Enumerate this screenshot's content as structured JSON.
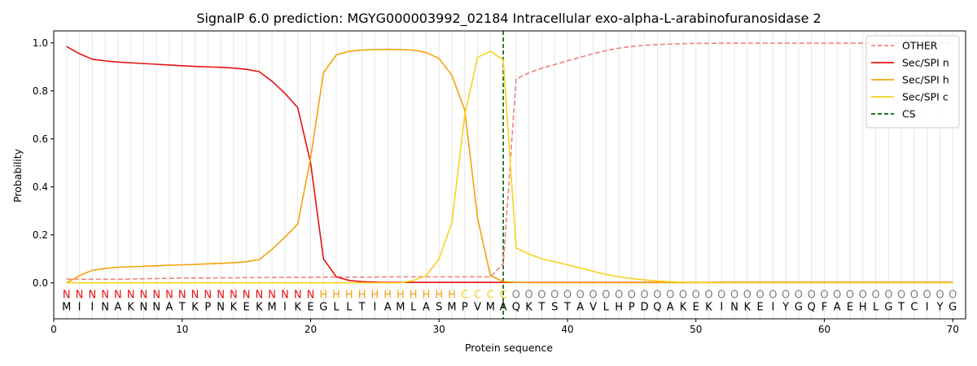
{
  "chart_data": {
    "type": "line",
    "title": "SignalP 6.0 prediction: MGYG000003992_02184 Intracellular exo-alpha-L-arabinofuranosidase 2",
    "xlabel": "Protein sequence",
    "ylabel": "Probability",
    "xlim": [
      0,
      71
    ],
    "ylim": [
      -0.15,
      1.05
    ],
    "xticks": [
      0,
      10,
      20,
      30,
      40,
      50,
      60,
      70
    ],
    "yticks": [
      0.0,
      0.2,
      0.4,
      0.6,
      0.8,
      1.0
    ],
    "ytick_labels": [
      "0.0",
      "0.2",
      "0.4",
      "0.6",
      "0.8",
      "1.0"
    ],
    "grid": "vertical lines at each residue",
    "legend_position": "top-right",
    "sequence": [
      "M",
      "I",
      "I",
      "N",
      "A",
      "K",
      "N",
      "N",
      "A",
      "T",
      "K",
      "P",
      "N",
      "K",
      "E",
      "K",
      "M",
      "I",
      "K",
      "E",
      "G",
      "L",
      "L",
      "T",
      "I",
      "A",
      "M",
      "L",
      "A",
      "S",
      "M",
      "P",
      "V",
      "M",
      "A",
      "Q",
      "K",
      "T",
      "S",
      "T",
      "A",
      "V",
      "L",
      "H",
      "P",
      "D",
      "Q",
      "A",
      "K",
      "E",
      "K",
      "I",
      "N",
      "K",
      "E",
      "I",
      "Y",
      "G",
      "Q",
      "F",
      "A",
      "E",
      "H",
      "L",
      "G",
      "T",
      "C",
      "I",
      "Y",
      "G"
    ],
    "region_labels": [
      "N",
      "N",
      "N",
      "N",
      "N",
      "N",
      "N",
      "N",
      "N",
      "N",
      "N",
      "N",
      "N",
      "N",
      "N",
      "N",
      "N",
      "N",
      "N",
      "N",
      "H",
      "H",
      "H",
      "H",
      "H",
      "H",
      "H",
      "H",
      "H",
      "H",
      "H",
      "C",
      "C",
      "C",
      "C",
      "O",
      "O",
      "O",
      "O",
      "O",
      "O",
      "O",
      "O",
      "O",
      "O",
      "O",
      "O",
      "O",
      "O",
      "O",
      "O",
      "O",
      "O",
      "O",
      "O",
      "O",
      "O",
      "O",
      "O",
      "O",
      "O",
      "O",
      "O",
      "O",
      "O",
      "O",
      "O",
      "O",
      "O",
      "O"
    ],
    "region_colors": {
      "N": "#e8120e",
      "H": "#f4a20c",
      "C": "#f7d21e",
      "O": "#808080"
    },
    "cs_position": 35,
    "series": [
      {
        "name": "OTHER",
        "color": "#f08080",
        "dash": "dashed",
        "values": [
          0.015,
          0.015,
          0.015,
          0.015,
          0.015,
          0.016,
          0.017,
          0.018,
          0.019,
          0.02,
          0.02,
          0.02,
          0.021,
          0.021,
          0.022,
          0.022,
          0.022,
          0.023,
          0.023,
          0.023,
          0.024,
          0.024,
          0.024,
          0.024,
          0.024,
          0.025,
          0.025,
          0.025,
          0.025,
          0.025,
          0.025,
          0.025,
          0.025,
          0.025,
          0.08,
          0.85,
          0.875,
          0.895,
          0.91,
          0.925,
          0.94,
          0.955,
          0.968,
          0.978,
          0.985,
          0.99,
          0.993,
          0.995,
          0.997,
          0.998,
          0.998,
          0.999,
          0.999,
          0.999,
          0.999,
          0.999,
          0.999,
          0.999,
          0.999,
          0.999,
          0.999,
          0.999,
          0.999,
          0.999,
          0.999,
          0.999,
          0.999,
          0.999,
          0.999,
          0.999
        ]
      },
      {
        "name": "Sec/SPI n",
        "color": "#e8120e",
        "dash": "solid",
        "values": [
          0.985,
          0.955,
          0.932,
          0.925,
          0.92,
          0.917,
          0.914,
          0.911,
          0.908,
          0.905,
          0.902,
          0.9,
          0.898,
          0.895,
          0.89,
          0.88,
          0.84,
          0.79,
          0.73,
          0.5,
          0.1,
          0.025,
          0.01,
          0.005,
          0.003,
          0.002,
          0.002,
          0.002,
          0.002,
          0.002,
          0.002,
          0.002,
          0.002,
          0.002,
          0.002,
          0.002,
          0.002,
          0.002,
          0.002,
          0.002,
          0.002,
          0.002,
          0.002,
          0.002,
          0.002,
          0.002,
          0.002,
          0.002,
          0.002,
          0.002,
          0.002,
          0.002,
          0.002,
          0.002,
          0.002,
          0.002,
          0.002,
          0.002,
          0.002,
          0.002,
          0.002,
          0.002,
          0.002,
          0.002,
          0.002,
          0.002,
          0.002,
          0.002,
          0.002,
          0.002
        ]
      },
      {
        "name": "Sec/SPI h",
        "color": "#f4a20c",
        "dash": "solid",
        "values": [
          0.0,
          0.03,
          0.052,
          0.06,
          0.065,
          0.067,
          0.069,
          0.071,
          0.073,
          0.075,
          0.077,
          0.079,
          0.081,
          0.084,
          0.088,
          0.097,
          0.14,
          0.19,
          0.245,
          0.52,
          0.875,
          0.95,
          0.965,
          0.97,
          0.972,
          0.973,
          0.972,
          0.97,
          0.96,
          0.935,
          0.865,
          0.72,
          0.27,
          0.03,
          0.005,
          0.002,
          0.001,
          0.001,
          0.001,
          0.001,
          0.001,
          0.001,
          0.001,
          0.001,
          0.001,
          0.001,
          0.001,
          0.001,
          0.001,
          0.001,
          0.001,
          0.001,
          0.001,
          0.001,
          0.001,
          0.001,
          0.001,
          0.001,
          0.001,
          0.001,
          0.001,
          0.001,
          0.001,
          0.001,
          0.001,
          0.001,
          0.001,
          0.001,
          0.001,
          0.001
        ]
      },
      {
        "name": "Sec/SPI c",
        "color": "#f7d21e",
        "dash": "solid",
        "values": [
          0.0,
          0.0,
          0.0,
          0.0,
          0.0,
          0.0,
          0.0,
          0.0,
          0.0,
          0.0,
          0.0,
          0.0,
          0.0,
          0.0,
          0.0,
          0.0,
          0.0,
          0.0,
          0.0,
          0.0,
          0.0,
          0.0,
          0.0,
          0.0,
          0.0,
          0.0,
          0.0,
          0.01,
          0.03,
          0.1,
          0.25,
          0.7,
          0.94,
          0.965,
          0.93,
          0.145,
          0.12,
          0.1,
          0.088,
          0.075,
          0.062,
          0.048,
          0.035,
          0.025,
          0.018,
          0.012,
          0.008,
          0.005,
          0.003,
          0.002,
          0.001,
          0.0,
          0.0,
          0.0,
          0.0,
          0.0,
          0.0,
          0.0,
          0.0,
          0.0,
          0.0,
          0.0,
          0.0,
          0.0,
          0.0,
          0.0,
          0.0,
          0.0,
          0.0,
          0.0
        ]
      }
    ],
    "cs_series": {
      "name": "CS",
      "color": "#006400",
      "dash": "dashed"
    }
  }
}
